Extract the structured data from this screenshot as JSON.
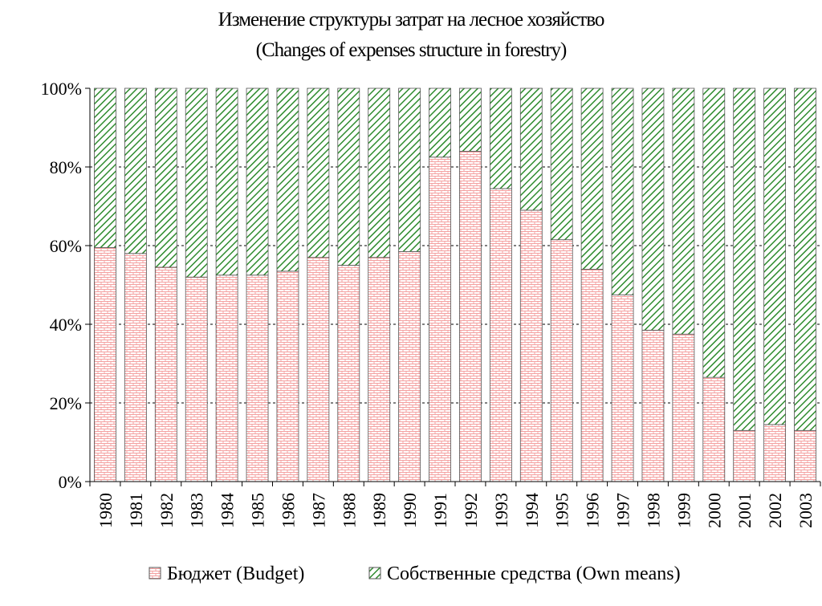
{
  "chart_data": {
    "type": "bar",
    "stacked": true,
    "title": "Изменение структуры затрат на лесное хозяйство",
    "subtitle": "(Changes of expenses structure in forestry)",
    "categories": [
      "1980",
      "1981",
      "1982",
      "1983",
      "1984",
      "1985",
      "1986",
      "1987",
      "1988",
      "1989",
      "1990",
      "1991",
      "1992",
      "1993",
      "1994",
      "1995",
      "1996",
      "1997",
      "1998",
      "1999",
      "2000",
      "2001",
      "2002",
      "2003"
    ],
    "series": [
      {
        "name": "Бюджет (Budget)",
        "color": "#f4a0a0",
        "pattern": "brick",
        "values": [
          59.5,
          58,
          54.5,
          52,
          52.5,
          52.5,
          53.5,
          57,
          55,
          57,
          58.5,
          82.5,
          84,
          74.5,
          69,
          61.5,
          54,
          47.5,
          38.5,
          37.5,
          26.5,
          13,
          14.5,
          13
        ]
      },
      {
        "name": "Собственные средства (Own means)",
        "color": "#2e8b2e",
        "pattern": "diagonal",
        "values": [
          40.5,
          42,
          45.5,
          48,
          47.5,
          47.5,
          46.5,
          43,
          45,
          43,
          41.5,
          17.5,
          16,
          25.5,
          31,
          38.5,
          46,
          52.5,
          61.5,
          62.5,
          73.5,
          87,
          85.5,
          87
        ]
      }
    ],
    "yticks": [
      "0%",
      "20%",
      "40%",
      "60%",
      "80%",
      "100%"
    ],
    "ylim": [
      0,
      100
    ],
    "grid": true,
    "legend_position": "bottom"
  }
}
